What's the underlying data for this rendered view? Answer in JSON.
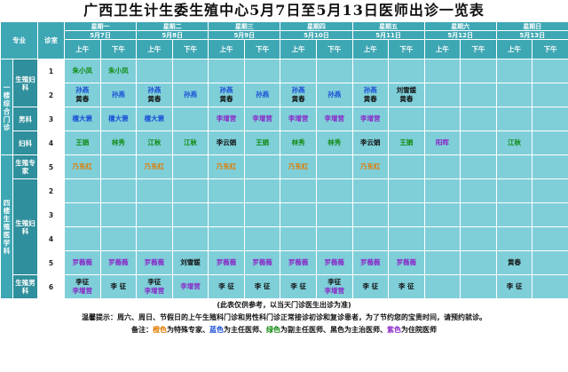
{
  "title": "广西卫生计生委生殖中心5月7日至5月13日医师出诊一览表",
  "header": {
    "specialty": "专业",
    "room": "诊室",
    "days": [
      {
        "dow": "星期一",
        "date": "5月7日"
      },
      {
        "dow": "星期二",
        "date": "5月8日"
      },
      {
        "dow": "星期三",
        "date": "5月9日"
      },
      {
        "dow": "星期四",
        "date": "5月10日"
      },
      {
        "dow": "星期五",
        "date": "5月11日"
      },
      {
        "dow": "星期六",
        "date": "5月12日"
      },
      {
        "dow": "星期日",
        "date": "5月13日"
      }
    ],
    "am": "上午",
    "pm": "下午"
  },
  "floors": {
    "first": "一楼综合门诊",
    "fourth": "四楼生殖医学科"
  },
  "groups": {
    "repro_gyn": "生殖妇科",
    "andro": "男科",
    "gyn": "妇科",
    "repro_expert": "生殖专家",
    "repro_gyn2": "生殖妇科",
    "repro_andro": "生殖男科"
  },
  "rows": [
    {
      "room": "1",
      "cells": [
        {
          "t": [
            "朱小凤"
          ],
          "c": "green"
        },
        {
          "t": [
            "朱小凤"
          ],
          "c": "green"
        },
        {
          "t": [],
          "c": ""
        },
        {
          "t": [],
          "c": ""
        },
        {
          "t": [],
          "c": ""
        },
        {
          "t": [],
          "c": ""
        },
        {
          "t": [],
          "c": ""
        },
        {
          "t": [],
          "c": ""
        },
        {
          "t": [],
          "c": ""
        },
        {
          "t": [],
          "c": ""
        },
        {
          "t": [],
          "c": ""
        },
        {
          "t": [],
          "c": ""
        },
        {
          "t": [],
          "c": ""
        },
        {
          "t": [],
          "c": ""
        }
      ]
    },
    {
      "room": "2",
      "cells": [
        {
          "t": [
            "孙燕",
            "黄春"
          ],
          "c": "blue"
        },
        {
          "t": [
            "孙燕"
          ],
          "c": "blue"
        },
        {
          "t": [
            "孙燕",
            "黄春"
          ],
          "c": "blue"
        },
        {
          "t": [
            "孙燕"
          ],
          "c": "blue"
        },
        {
          "t": [
            "孙燕",
            "黄春"
          ],
          "c": "blue"
        },
        {
          "t": [
            "孙燕"
          ],
          "c": "blue"
        },
        {
          "t": [
            "孙燕",
            "黄春"
          ],
          "c": "blue"
        },
        {
          "t": [
            "孙燕"
          ],
          "c": "blue"
        },
        {
          "t": [
            "孙燕",
            "黄春"
          ],
          "c": "blue"
        },
        {
          "t": [
            "刘雪媛",
            "黄春"
          ],
          "c": "black"
        },
        {
          "t": [],
          "c": ""
        },
        {
          "t": [],
          "c": ""
        },
        {
          "t": [],
          "c": ""
        },
        {
          "t": [],
          "c": ""
        }
      ]
    },
    {
      "room": "3",
      "cells": [
        {
          "t": [
            "檀大褒"
          ],
          "c": "blue"
        },
        {
          "t": [
            "檀大褒"
          ],
          "c": "blue"
        },
        {
          "t": [
            "檀大褒"
          ],
          "c": "blue"
        },
        {
          "t": [],
          "c": ""
        },
        {
          "t": [
            "李增营"
          ],
          "c": "purple"
        },
        {
          "t": [
            "李增营"
          ],
          "c": "purple"
        },
        {
          "t": [
            "李增营"
          ],
          "c": "purple"
        },
        {
          "t": [
            "李增营"
          ],
          "c": "purple"
        },
        {
          "t": [
            "李增营"
          ],
          "c": "purple"
        },
        {
          "t": [],
          "c": ""
        },
        {
          "t": [],
          "c": ""
        },
        {
          "t": [],
          "c": ""
        },
        {
          "t": [],
          "c": ""
        },
        {
          "t": [],
          "c": ""
        }
      ]
    },
    {
      "room": "4",
      "cells": [
        {
          "t": [
            "王娟"
          ],
          "c": "green"
        },
        {
          "t": [
            "林秀"
          ],
          "c": "green"
        },
        {
          "t": [
            "江秋"
          ],
          "c": "green"
        },
        {
          "t": [
            "江秋"
          ],
          "c": "green"
        },
        {
          "t": [
            "李云娟"
          ],
          "c": "black"
        },
        {
          "t": [
            "王娟"
          ],
          "c": "green"
        },
        {
          "t": [
            "林秀"
          ],
          "c": "green"
        },
        {
          "t": [
            "林秀"
          ],
          "c": "green"
        },
        {
          "t": [
            "李云娟"
          ],
          "c": "black"
        },
        {
          "t": [
            "王娟"
          ],
          "c": "green"
        },
        {
          "t": [
            "阳晖"
          ],
          "c": "purple"
        },
        {
          "t": [],
          "c": ""
        },
        {
          "t": [
            "江秋"
          ],
          "c": "green"
        },
        {
          "t": [],
          "c": ""
        }
      ]
    },
    {
      "room": "5",
      "cells": [
        {
          "t": [
            "乃东红"
          ],
          "c": "orange"
        },
        {
          "t": [],
          "c": ""
        },
        {
          "t": [
            "乃东红"
          ],
          "c": "orange"
        },
        {
          "t": [],
          "c": ""
        },
        {
          "t": [
            "乃东红"
          ],
          "c": "orange"
        },
        {
          "t": [],
          "c": ""
        },
        {
          "t": [
            "乃东红"
          ],
          "c": "orange"
        },
        {
          "t": [],
          "c": ""
        },
        {
          "t": [
            "乃东红"
          ],
          "c": "orange"
        },
        {
          "t": [],
          "c": ""
        },
        {
          "t": [],
          "c": ""
        },
        {
          "t": [],
          "c": ""
        },
        {
          "t": [],
          "c": ""
        },
        {
          "t": [],
          "c": ""
        }
      ]
    },
    {
      "room": "2",
      "cells": [
        {
          "t": [],
          "c": ""
        },
        {
          "t": [],
          "c": ""
        },
        {
          "t": [],
          "c": ""
        },
        {
          "t": [],
          "c": ""
        },
        {
          "t": [],
          "c": ""
        },
        {
          "t": [],
          "c": ""
        },
        {
          "t": [],
          "c": ""
        },
        {
          "t": [],
          "c": ""
        },
        {
          "t": [],
          "c": ""
        },
        {
          "t": [],
          "c": ""
        },
        {
          "t": [],
          "c": ""
        },
        {
          "t": [],
          "c": ""
        },
        {
          "t": [],
          "c": ""
        },
        {
          "t": [],
          "c": ""
        }
      ]
    },
    {
      "room": "3",
      "cells": [
        {
          "t": [],
          "c": ""
        },
        {
          "t": [],
          "c": ""
        },
        {
          "t": [],
          "c": ""
        },
        {
          "t": [],
          "c": ""
        },
        {
          "t": [],
          "c": ""
        },
        {
          "t": [],
          "c": ""
        },
        {
          "t": [],
          "c": ""
        },
        {
          "t": [],
          "c": ""
        },
        {
          "t": [],
          "c": ""
        },
        {
          "t": [],
          "c": ""
        },
        {
          "t": [],
          "c": ""
        },
        {
          "t": [],
          "c": ""
        },
        {
          "t": [],
          "c": ""
        },
        {
          "t": [],
          "c": ""
        }
      ]
    },
    {
      "room": "4",
      "cells": [
        {
          "t": [],
          "c": ""
        },
        {
          "t": [],
          "c": ""
        },
        {
          "t": [],
          "c": ""
        },
        {
          "t": [],
          "c": ""
        },
        {
          "t": [],
          "c": ""
        },
        {
          "t": [],
          "c": ""
        },
        {
          "t": [],
          "c": ""
        },
        {
          "t": [],
          "c": ""
        },
        {
          "t": [],
          "c": ""
        },
        {
          "t": [],
          "c": ""
        },
        {
          "t": [],
          "c": ""
        },
        {
          "t": [],
          "c": ""
        },
        {
          "t": [],
          "c": ""
        },
        {
          "t": [],
          "c": ""
        }
      ]
    },
    {
      "room": "5",
      "cells": [
        {
          "t": [
            "罗薇薇"
          ],
          "c": "purple"
        },
        {
          "t": [
            "罗薇薇"
          ],
          "c": "purple"
        },
        {
          "t": [
            "罗薇薇"
          ],
          "c": "purple"
        },
        {
          "t": [
            "刘雪媛"
          ],
          "c": "black"
        },
        {
          "t": [
            "罗薇薇"
          ],
          "c": "purple"
        },
        {
          "t": [
            "罗薇薇"
          ],
          "c": "purple"
        },
        {
          "t": [
            "罗薇薇"
          ],
          "c": "purple"
        },
        {
          "t": [
            "罗薇薇"
          ],
          "c": "purple"
        },
        {
          "t": [
            "罗薇薇"
          ],
          "c": "purple"
        },
        {
          "t": [
            "罗薇薇"
          ],
          "c": "purple"
        },
        {
          "t": [],
          "c": ""
        },
        {
          "t": [],
          "c": ""
        },
        {
          "t": [
            "黄春"
          ],
          "c": "black"
        },
        {
          "t": [],
          "c": ""
        }
      ]
    },
    {
      "room": "6",
      "cells": [
        {
          "t": [
            "李征",
            "李增营"
          ],
          "c": "mixed"
        },
        {
          "t": [
            "李 征"
          ],
          "c": "black"
        },
        {
          "t": [
            "李征",
            "李增营"
          ],
          "c": "mixed"
        },
        {
          "t": [
            "李增营"
          ],
          "c": "purple"
        },
        {
          "t": [
            "李 征"
          ],
          "c": "black"
        },
        {
          "t": [
            "李 征"
          ],
          "c": "black"
        },
        {
          "t": [
            "李 征"
          ],
          "c": "black"
        },
        {
          "t": [
            "李征",
            "李增营"
          ],
          "c": "mixed"
        },
        {
          "t": [
            "李 征"
          ],
          "c": "black"
        },
        {
          "t": [
            "李 征"
          ],
          "c": "black"
        },
        {
          "t": [],
          "c": ""
        },
        {
          "t": [],
          "c": ""
        },
        {
          "t": [
            "李 征"
          ],
          "c": "black"
        },
        {
          "t": [],
          "c": ""
        }
      ]
    }
  ],
  "notes": {
    "ref": "(此表仅供参考，以当天门诊医生出诊为准)",
    "tip": "温馨提示：周六、周日、节假日的上午生殖科门诊和男性科门诊正常接诊初诊和复诊患者，为了节约您的宝贵时间，请预约就诊。",
    "legend_prefix": "备注：",
    "legend_orange": "橙色",
    "legend_orange_text": "为特殊专家、",
    "legend_blue": "蓝色",
    "legend_blue_text": "为主任医师、",
    "legend_green": "绿色",
    "legend_green_text": "为副主任医师、",
    "legend_black": "黑色",
    "legend_black_text": "为主治医师、",
    "legend_purple": "紫色",
    "legend_purple_text": "为住院医师"
  },
  "colors": {
    "orange": "#e07a00",
    "blue": "#1a4fd6",
    "green": "#108a10",
    "black": "#111111",
    "purple": "#8a28c8",
    "header_bg": "#3ea7b4",
    "cell_bg": "#7fcfd9"
  }
}
